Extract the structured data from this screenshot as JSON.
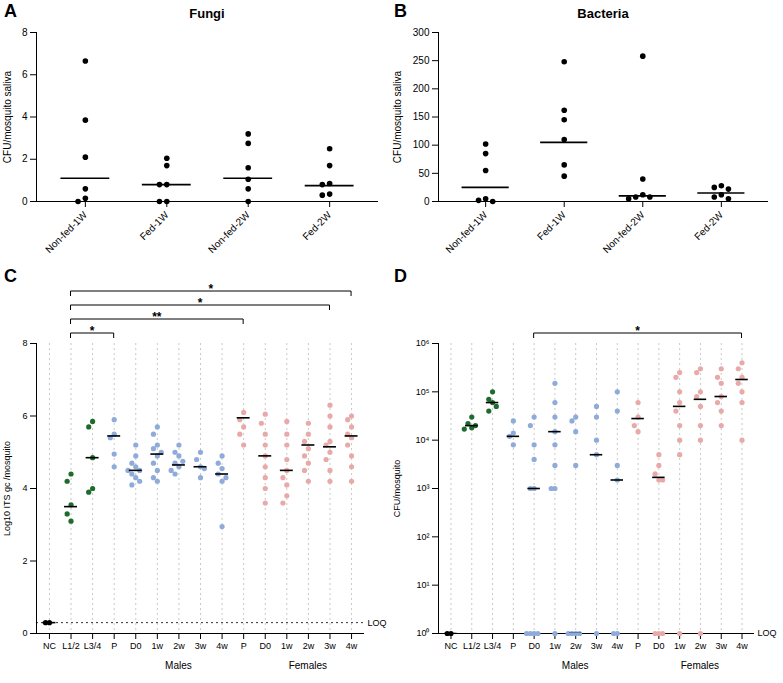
{
  "chart_data": [
    {
      "panel": "A",
      "type": "scatter",
      "title": "Fungi",
      "ylabel": "CFU/mosquito saliva",
      "categories": [
        "Non-fed-1W",
        "Fed-1W",
        "Non-fed-2W",
        "Fed-2W"
      ],
      "values": [
        [
          6.65,
          3.85,
          2.1,
          0.6,
          0.15,
          0
        ],
        [
          2.05,
          1.7,
          0.8,
          0.8,
          0,
          0
        ],
        [
          3.2,
          2.75,
          1.6,
          1.05,
          0.6,
          0
        ],
        [
          2.5,
          1.7,
          0.85,
          0.8,
          0.35,
          0.3
        ]
      ],
      "medians": [
        1.1,
        0.8,
        1.1,
        0.75
      ],
      "color": "#000000",
      "ylim": [
        0,
        8
      ],
      "yticks": [
        0,
        2,
        4,
        6,
        8
      ],
      "grid": false
    },
    {
      "panel": "B",
      "type": "scatter",
      "title": "Bacteria",
      "ylabel": "CFU/mosquito saliva",
      "categories": [
        "Non-fed-1W",
        "Fed-1W",
        "Non-fed-2W",
        "Fed-2W"
      ],
      "values": [
        [
          102,
          85,
          55,
          5,
          2,
          0
        ],
        [
          248,
          162,
          145,
          110,
          65,
          45
        ],
        [
          258,
          40,
          12,
          8,
          8,
          5
        ],
        [
          28,
          25,
          22,
          12,
          8,
          5
        ]
      ],
      "medians": [
        25,
        105,
        10,
        15
      ],
      "color": "#000000",
      "ylim": [
        0,
        300
      ],
      "yticks": [
        0,
        50,
        100,
        150,
        200,
        250,
        300
      ],
      "grid": false
    },
    {
      "panel": "C",
      "type": "scatter",
      "ylabel": "Log10 ITS gc /mosquito",
      "categories": [
        "NC",
        "L1/2",
        "L3/4",
        "P",
        "D0",
        "1w",
        "2w",
        "3w",
        "4w",
        "P",
        "D0",
        "1w",
        "2w",
        "3w",
        "4w"
      ],
      "category_groups": [
        null,
        null,
        null,
        null,
        "Males",
        "Males",
        "Males",
        "Males",
        "Males",
        null,
        "Females",
        "Females",
        "Females",
        "Females",
        "Females"
      ],
      "values": [
        [
          0.3,
          0.3
        ],
        [
          4.4,
          4.2,
          3.55,
          3.3,
          3.1
        ],
        [
          5.85,
          5.7,
          4.85,
          4.0,
          3.9
        ],
        [
          5.9,
          5.5,
          5.4,
          4.95,
          4.6
        ],
        [
          5.2,
          4.9,
          4.7,
          4.6,
          4.5,
          4.5,
          4.4,
          4.3,
          4.2,
          4.1
        ],
        [
          5.7,
          5.5,
          5.2,
          5.1,
          5.0,
          4.9,
          4.7,
          4.5,
          4.3,
          4.2
        ],
        [
          5.2,
          5.0,
          4.9,
          4.75,
          4.7,
          4.6,
          4.5,
          4.4
        ],
        [
          5.0,
          4.8,
          4.6,
          4.55,
          4.3
        ],
        [
          4.9,
          4.7,
          4.55,
          4.4,
          4.3,
          4.2,
          2.95
        ],
        [
          6.1,
          5.9,
          5.7,
          5.5,
          5.2
        ],
        [
          6.05,
          5.8,
          5.5,
          5.2,
          4.9,
          4.6,
          4.3,
          4.0,
          3.6
        ],
        [
          5.85,
          5.5,
          5.2,
          4.8,
          4.5,
          4.3,
          4.1,
          3.8,
          3.6
        ],
        [
          5.8,
          5.5,
          5.3,
          5.1,
          4.9,
          4.7,
          4.5,
          4.2
        ],
        [
          6.3,
          6.0,
          5.7,
          5.3,
          5.2,
          5.0,
          4.8,
          4.5,
          4.2
        ],
        [
          6.0,
          5.9,
          5.7,
          5.5,
          5.4,
          5.2,
          4.9,
          4.6,
          4.2
        ]
      ],
      "medians": [
        0.3,
        3.5,
        4.85,
        5.45,
        4.5,
        4.95,
        4.65,
        4.6,
        4.4,
        5.95,
        4.9,
        4.5,
        5.2,
        5.15,
        5.45
      ],
      "colors": [
        "#000000",
        "#1e6b2e",
        "#1e6b2e",
        "#8fabd9",
        "#8fabd9",
        "#8fabd9",
        "#8fabd9",
        "#8fabd9",
        "#8fabd9",
        "#e8aaa8",
        "#e8aaa8",
        "#e8aaa8",
        "#e8aaa8",
        "#e8aaa8",
        "#e8aaa8"
      ],
      "loq": {
        "value": 0.3,
        "label": "LOQ"
      },
      "significance": [
        {
          "from": 1,
          "to": 3,
          "label": "*"
        },
        {
          "from": 1,
          "to": 9,
          "label": "**"
        },
        {
          "from": 1,
          "to": 13,
          "label": "*"
        },
        {
          "from": 1,
          "to": 14,
          "label": "*"
        }
      ],
      "ylim": [
        0,
        8
      ],
      "yticks": [
        0,
        2,
        4,
        6,
        8
      ],
      "grid": true
    },
    {
      "panel": "D",
      "type": "scatter",
      "ylabel": "CFU/mosquito",
      "log": "y",
      "categories": [
        "NC",
        "L1/2",
        "L3/4",
        "P",
        "D0",
        "1w",
        "2w",
        "3w",
        "4w",
        "P",
        "D0",
        "1w",
        "2w",
        "3w",
        "4w"
      ],
      "category_groups": [
        null,
        null,
        null,
        null,
        "Males",
        "Males",
        "Males",
        "Males",
        "Males",
        null,
        "Females",
        "Females",
        "Females",
        "Females",
        "Females"
      ],
      "values": [
        [
          1,
          1
        ],
        [
          30000,
          22000,
          20000,
          18000,
          17000
        ],
        [
          100000,
          70000,
          60000,
          50000,
          40000
        ],
        [
          25000,
          14000,
          12000,
          8000
        ],
        [
          30000,
          20000,
          8000,
          4000,
          1000,
          1000,
          1,
          1,
          1,
          1
        ],
        [
          150000,
          60000,
          30000,
          15000,
          8000,
          3000,
          1000,
          1000,
          1
        ],
        [
          30000,
          25000,
          15000,
          3000,
          1,
          1,
          1,
          1
        ],
        [
          50000,
          30000,
          10000,
          5000,
          1
        ],
        [
          100000,
          40000,
          3000,
          1500,
          1,
          1
        ],
        [
          60000,
          30000,
          20000,
          15000
        ],
        [
          5000,
          3000,
          2000,
          1500,
          1500,
          1,
          1,
          1
        ],
        [
          250000,
          200000,
          100000,
          60000,
          40000,
          20000,
          10000,
          5000,
          1
        ],
        [
          300000,
          250000,
          100000,
          80000,
          50000,
          20000,
          10000,
          1
        ],
        [
          300000,
          200000,
          150000,
          80000,
          60000,
          40000,
          20000
        ],
        [
          400000,
          300000,
          200000,
          150000,
          100000,
          60000,
          10000
        ]
      ],
      "medians": [
        1,
        20000,
        60000,
        12000,
        1000,
        15000,
        1,
        5000,
        1500,
        28000,
        1700,
        50000,
        70000,
        80000,
        180000
      ],
      "colors": [
        "#000000",
        "#1e6b2e",
        "#1e6b2e",
        "#8fabd9",
        "#8fabd9",
        "#8fabd9",
        "#8fabd9",
        "#8fabd9",
        "#8fabd9",
        "#e8aaa8",
        "#e8aaa8",
        "#e8aaa8",
        "#e8aaa8",
        "#e8aaa8",
        "#e8aaa8"
      ],
      "loq": {
        "value": 1,
        "label": "LOQ"
      },
      "significance": [
        {
          "from": 4,
          "to": 14,
          "label": "*"
        }
      ],
      "ylim": [
        1,
        1000000
      ],
      "yticks": [
        {
          "value": 1,
          "label": "10⁰"
        },
        {
          "value": 10,
          "label": "10¹"
        },
        {
          "value": 100,
          "label": "10²"
        },
        {
          "value": 1000,
          "label": "10³"
        },
        {
          "value": 10000,
          "label": "10⁴"
        },
        {
          "value": 100000,
          "label": "10⁵"
        },
        {
          "value": 1000000,
          "label": "10⁶"
        }
      ],
      "grid": true
    }
  ]
}
